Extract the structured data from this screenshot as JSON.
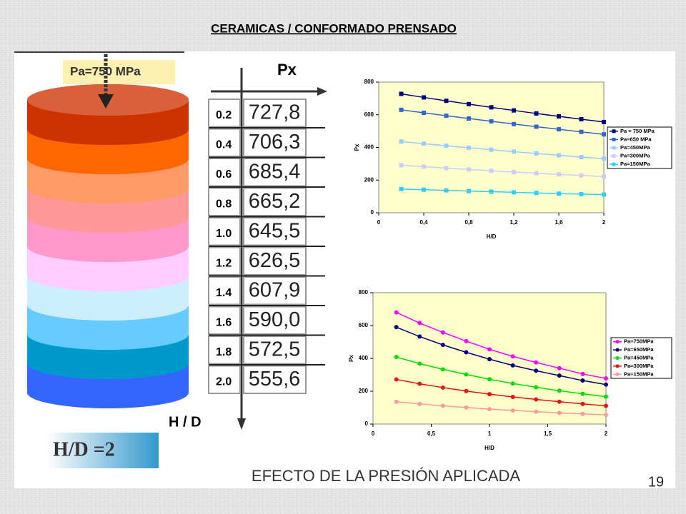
{
  "slide": {
    "title": "CERAMICAS / CONFORMADO PRENSADO",
    "pressure_label": "Pa=750 MPa",
    "px_label": "Px",
    "hd_label": "H / D",
    "hd_box": "H/D =2",
    "caption": "EFECTO DE LA PRESIÓN APLICADA",
    "page_number": "19",
    "table": {
      "rows": [
        [
          "0.2",
          "727,8"
        ],
        [
          "0.4",
          "706,3"
        ],
        [
          "0.6",
          "685,4"
        ],
        [
          "0.8",
          "665,2"
        ],
        [
          "1.0",
          "645,5"
        ],
        [
          "1.2",
          "626,5"
        ],
        [
          "1.4",
          "607,9"
        ],
        [
          "1.6",
          "590,0"
        ],
        [
          "1.8",
          "572,5"
        ],
        [
          "2.0",
          "555,6"
        ]
      ]
    }
  },
  "chart_data": [
    {
      "type": "line",
      "marker": "square",
      "x_label": "H/D",
      "y_label": "Px",
      "x": [
        0.2,
        0.4,
        0.6,
        0.8,
        1.0,
        1.2,
        1.4,
        1.6,
        1.8,
        2.0
      ],
      "xlim": [
        0,
        2
      ],
      "xticks": [
        0,
        {
          "value": 0.4,
          "label": "0,4"
        },
        {
          "value": 0.8,
          "label": "0,8"
        },
        {
          "value": 1.2,
          "label": "1,2"
        },
        {
          "value": 1.6,
          "label": "1,6"
        },
        2
      ],
      "ylim": [
        0,
        800
      ],
      "yticks": [
        0,
        200,
        400,
        600,
        800
      ],
      "series": [
        {
          "name": "Pa = 750 MPa",
          "color": "#000080",
          "values": [
            727.8,
            706.3,
            685.4,
            665.2,
            645.5,
            626.5,
            607.9,
            590.0,
            572.5,
            555.6
          ]
        },
        {
          "name": "Pa=650 MPa",
          "color": "#3366cc",
          "values": [
            630,
            612,
            594,
            577,
            560,
            543,
            527,
            511,
            495,
            480
          ]
        },
        {
          "name": "Pa=450MPa",
          "color": "#99ccff",
          "values": [
            436,
            423,
            410,
            398,
            386,
            374,
            363,
            352,
            341,
            331
          ]
        },
        {
          "name": "Pa=300MPa",
          "color": "#ccccff",
          "values": [
            291,
            282,
            273,
            265,
            257,
            249,
            242,
            235,
            228,
            222
          ]
        },
        {
          "name": "Pa=150MPa",
          "color": "#33ccff",
          "values": [
            145,
            141,
            137,
            133,
            129,
            125,
            121,
            117,
            114,
            111
          ]
        }
      ]
    },
    {
      "type": "line",
      "marker": "circle",
      "x_label": "H/D",
      "y_label": "Px",
      "x": [
        0.2,
        0.4,
        0.6,
        0.8,
        1.0,
        1.2,
        1.4,
        1.6,
        1.8,
        2.0
      ],
      "xlim": [
        0,
        2
      ],
      "xticks": [
        0,
        {
          "value": 0.5,
          "label": "0,5"
        },
        1,
        {
          "value": 1.5,
          "label": "1,5"
        },
        2
      ],
      "ylim": [
        0,
        800
      ],
      "yticks": [
        0,
        200,
        400,
        600,
        800
      ],
      "series": [
        {
          "name": "Pa=750MPa",
          "color": "#ff00ff",
          "values": [
            680,
            615,
            558,
            505,
            455,
            412,
            375,
            340,
            305,
            278
          ]
        },
        {
          "name": "Pa=650MPa",
          "color": "#000080",
          "values": [
            590,
            533,
            482,
            437,
            395,
            357,
            325,
            295,
            265,
            240
          ]
        },
        {
          "name": "Pa=450MPa",
          "color": "#00dd00",
          "values": [
            408,
            368,
            333,
            302,
            273,
            247,
            224,
            203,
            184,
            167
          ]
        },
        {
          "name": "Pa=300MPa",
          "color": "#ee1111",
          "values": [
            272,
            245,
            222,
            201,
            182,
            165,
            150,
            136,
            123,
            111
          ]
        },
        {
          "name": "Pa=150MPa",
          "color": "#ff9999",
          "values": [
            136,
            123,
            111,
            101,
            91,
            83,
            75,
            68,
            62,
            56
          ]
        }
      ]
    }
  ]
}
